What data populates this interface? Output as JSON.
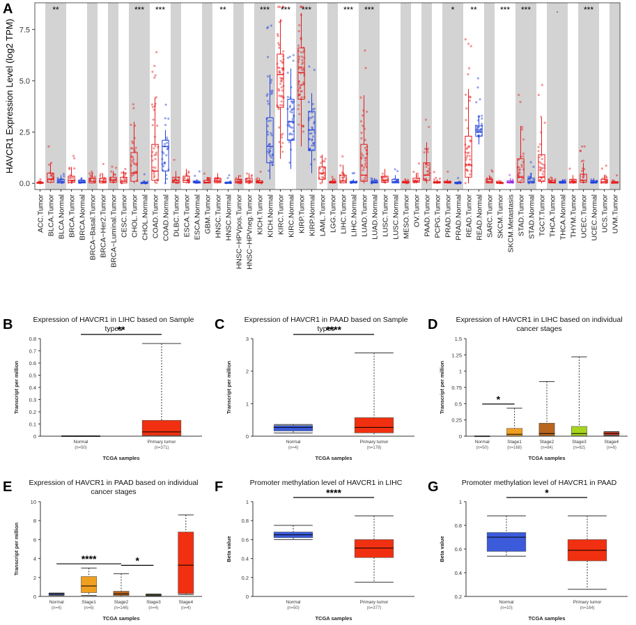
{
  "panel_letters": [
    "A",
    "B",
    "C",
    "D",
    "E",
    "F",
    "G"
  ],
  "chart_data": [
    {
      "id": "A",
      "type": "box",
      "ylabel": "HAVCR1 Expression Level (log2 TPM)",
      "ylim": [
        -0.3,
        8.8
      ],
      "yticks": [
        "0.0",
        "2.5",
        "5.0",
        "7.5"
      ],
      "shaded_columns": "alternating tumor/normal pairs shaded grey",
      "categories": [
        "ACC.Tumor",
        "BLCA.Tumor",
        "BLCA.Normal",
        "BRCA.Tumor",
        "BRCA.Normal",
        "BRCA−Basal.Tumor",
        "BRCA−Her2.Tumor",
        "BRCA−Luminal.Tumor",
        "CESC.Tumor",
        "CHOL.Tumor",
        "CHOL.Normal",
        "COAD.Tumor",
        "COAD.Normal",
        "DLBC.Tumor",
        "ESCA.Tumor",
        "ESCA.Normal",
        "GBM.Tumor",
        "HNSC.Tumor",
        "HNSC.Normal",
        "HNSC−HPVpos.Tumor",
        "HNSC−HPVneg.Tumor",
        "KICH.Tumor",
        "KICH.Normal",
        "KIRC.Tumor",
        "KIRC.Normal",
        "KIRP.Tumor",
        "KIRP.Normal",
        "LAML.Tumor",
        "LGG.Tumor",
        "LIHC.Tumor",
        "LIHC.Normal",
        "LUAD.Tumor",
        "LUAD.Normal",
        "LUSC.Tumor",
        "LUSC.Normal",
        "MESO.Tumor",
        "OV.Tumor",
        "PAAD.Tumor",
        "PCPG.Tumor",
        "PRAD.Tumor",
        "PRAD.Normal",
        "READ.Tumor",
        "READ.Normal",
        "SARC.Tumor",
        "SKCM.Tumor",
        "SKCM.Metastasis",
        "STAD.Tumor",
        "STAD.Normal",
        "TGCT.Tumor",
        "THCA.Tumor",
        "THCA.Normal",
        "THYM.Tumor",
        "UCEC.Tumor",
        "UCEC.Normal",
        "UCS.Tumor",
        "UVM.Tumor"
      ],
      "boxes": [
        {
          "q1": 0.0,
          "med": 0.02,
          "q3": 0.05,
          "wl": 0,
          "wh": 0.1,
          "color": "red"
        },
        {
          "q1": 0.05,
          "med": 0.2,
          "q3": 0.5,
          "wl": 0,
          "wh": 1.0,
          "color": "red"
        },
        {
          "q1": 0.02,
          "med": 0.08,
          "q3": 0.2,
          "wl": 0,
          "wh": 0.4,
          "color": "blue"
        },
        {
          "q1": 0.05,
          "med": 0.15,
          "q3": 0.35,
          "wl": 0,
          "wh": 0.8,
          "color": "red"
        },
        {
          "q1": 0.02,
          "med": 0.06,
          "q3": 0.15,
          "wl": 0,
          "wh": 0.3,
          "color": "blue"
        },
        {
          "q1": 0.02,
          "med": 0.1,
          "q3": 0.25,
          "wl": 0,
          "wh": 0.5,
          "color": "red"
        },
        {
          "q1": 0.02,
          "med": 0.1,
          "q3": 0.25,
          "wl": 0,
          "wh": 0.5,
          "color": "red"
        },
        {
          "q1": 0.05,
          "med": 0.15,
          "q3": 0.3,
          "wl": 0,
          "wh": 0.6,
          "color": "red"
        },
        {
          "q1": 0.02,
          "med": 0.1,
          "q3": 0.3,
          "wl": 0,
          "wh": 0.6,
          "color": "red"
        },
        {
          "q1": 0.1,
          "med": 0.5,
          "q3": 1.5,
          "wl": 0,
          "wh": 3.0,
          "color": "red"
        },
        {
          "q1": 0.0,
          "med": 0.02,
          "q3": 0.05,
          "wl": 0,
          "wh": 0.1,
          "color": "blue"
        },
        {
          "q1": 0.15,
          "med": 0.6,
          "q3": 1.9,
          "wl": 0,
          "wh": 4.2,
          "color": "red"
        },
        {
          "q1": 0.6,
          "med": 1.8,
          "q3": 2.1,
          "wl": 0,
          "wh": 2.6,
          "color": "blue"
        },
        {
          "q1": 0.05,
          "med": 0.15,
          "q3": 0.3,
          "wl": 0,
          "wh": 0.6,
          "color": "red"
        },
        {
          "q1": 0.05,
          "med": 0.15,
          "q3": 0.35,
          "wl": 0,
          "wh": 0.7,
          "color": "red"
        },
        {
          "q1": 0.02,
          "med": 0.05,
          "q3": 0.1,
          "wl": 0,
          "wh": 0.2,
          "color": "blue"
        },
        {
          "q1": 0.02,
          "med": 0.05,
          "q3": 0.15,
          "wl": 0,
          "wh": 0.3,
          "color": "red"
        },
        {
          "q1": 0.03,
          "med": 0.1,
          "q3": 0.25,
          "wl": 0,
          "wh": 0.5,
          "color": "red"
        },
        {
          "q1": 0.0,
          "med": 0.02,
          "q3": 0.05,
          "wl": 0,
          "wh": 0.1,
          "color": "blue"
        },
        {
          "q1": 0.02,
          "med": 0.08,
          "q3": 0.2,
          "wl": 0,
          "wh": 0.4,
          "color": "red"
        },
        {
          "q1": 0.03,
          "med": 0.1,
          "q3": 0.25,
          "wl": 0,
          "wh": 0.5,
          "color": "red"
        },
        {
          "q1": 0.02,
          "med": 0.05,
          "q3": 0.12,
          "wl": 0,
          "wh": 0.25,
          "color": "red"
        },
        {
          "q1": 1.0,
          "med": 1.8,
          "q3": 3.2,
          "wl": 0.2,
          "wh": 5.3,
          "color": "blue"
        },
        {
          "q1": 3.7,
          "med": 5.3,
          "q3": 6.3,
          "wl": 1.2,
          "wh": 8.0,
          "color": "red"
        },
        {
          "q1": 2.1,
          "med": 3.0,
          "q3": 4.1,
          "wl": 0.7,
          "wh": 5.6,
          "color": "blue"
        },
        {
          "q1": 4.1,
          "med": 5.4,
          "q3": 6.6,
          "wl": 1.8,
          "wh": 8.3,
          "color": "red"
        },
        {
          "q1": 1.6,
          "med": 2.6,
          "q3": 3.5,
          "wl": 0.5,
          "wh": 4.4,
          "color": "blue"
        },
        {
          "q1": 0.2,
          "med": 0.5,
          "q3": 0.8,
          "wl": 0,
          "wh": 1.4,
          "color": "red"
        },
        {
          "q1": 0.02,
          "med": 0.05,
          "q3": 0.1,
          "wl": 0,
          "wh": 0.2,
          "color": "red"
        },
        {
          "q1": 0.03,
          "med": 0.12,
          "q3": 0.4,
          "wl": 0,
          "wh": 0.9,
          "color": "red"
        },
        {
          "q1": 0.02,
          "med": 0.05,
          "q3": 0.1,
          "wl": 0,
          "wh": 0.2,
          "color": "blue"
        },
        {
          "q1": 0.1,
          "med": 0.4,
          "q3": 1.9,
          "wl": 0,
          "wh": 4.3,
          "color": "red"
        },
        {
          "q1": 0.02,
          "med": 0.05,
          "q3": 0.12,
          "wl": 0,
          "wh": 0.25,
          "color": "blue"
        },
        {
          "q1": 0.05,
          "med": 0.15,
          "q3": 0.35,
          "wl": 0,
          "wh": 0.7,
          "color": "red"
        },
        {
          "q1": 0.02,
          "med": 0.08,
          "q3": 0.2,
          "wl": 0,
          "wh": 0.4,
          "color": "blue"
        },
        {
          "q1": 0.02,
          "med": 0.05,
          "q3": 0.1,
          "wl": 0,
          "wh": 0.2,
          "color": "red"
        },
        {
          "q1": 0.05,
          "med": 0.12,
          "q3": 0.25,
          "wl": 0,
          "wh": 0.5,
          "color": "red"
        },
        {
          "q1": 0.15,
          "med": 0.4,
          "q3": 1.0,
          "wl": 0,
          "wh": 2.0,
          "color": "red"
        },
        {
          "q1": 0.02,
          "med": 0.05,
          "q3": 0.1,
          "wl": 0,
          "wh": 0.2,
          "color": "red"
        },
        {
          "q1": 0.02,
          "med": 0.05,
          "q3": 0.1,
          "wl": 0,
          "wh": 0.2,
          "color": "red"
        },
        {
          "q1": 0.0,
          "med": 0.02,
          "q3": 0.05,
          "wl": 0,
          "wh": 0.1,
          "color": "blue"
        },
        {
          "q1": 0.3,
          "med": 0.9,
          "q3": 2.3,
          "wl": 0,
          "wh": 4.6,
          "color": "red"
        },
        {
          "q1": 2.3,
          "med": 2.5,
          "q3": 2.8,
          "wl": 1.9,
          "wh": 3.3,
          "color": "blue"
        },
        {
          "q1": 0.02,
          "med": 0.08,
          "q3": 0.2,
          "wl": 0,
          "wh": 0.4,
          "color": "red"
        },
        {
          "q1": 0.0,
          "med": 0.02,
          "q3": 0.05,
          "wl": 0,
          "wh": 0.1,
          "color": "red"
        },
        {
          "q1": 0.02,
          "med": 0.05,
          "q3": 0.12,
          "wl": 0,
          "wh": 0.25,
          "color": "purple"
        },
        {
          "q1": 0.05,
          "med": 0.3,
          "q3": 1.2,
          "wl": 0,
          "wh": 2.8,
          "color": "red"
        },
        {
          "q1": 0.02,
          "med": 0.08,
          "q3": 0.25,
          "wl": 0,
          "wh": 0.5,
          "color": "blue"
        },
        {
          "q1": 0.1,
          "med": 0.3,
          "q3": 1.4,
          "wl": 0,
          "wh": 3.2,
          "color": "red"
        },
        {
          "q1": 0.02,
          "med": 0.06,
          "q3": 0.15,
          "wl": 0,
          "wh": 0.3,
          "color": "red"
        },
        {
          "q1": 0.01,
          "med": 0.04,
          "q3": 0.1,
          "wl": 0,
          "wh": 0.2,
          "color": "blue"
        },
        {
          "q1": 0.02,
          "med": 0.08,
          "q3": 0.2,
          "wl": 0,
          "wh": 0.4,
          "color": "red"
        },
        {
          "q1": 0.05,
          "med": 0.15,
          "q3": 0.45,
          "wl": 0,
          "wh": 1.0,
          "color": "red"
        },
        {
          "q1": 0.02,
          "med": 0.05,
          "q3": 0.12,
          "wl": 0,
          "wh": 0.25,
          "color": "blue"
        },
        {
          "q1": 0.02,
          "med": 0.08,
          "q3": 0.2,
          "wl": 0,
          "wh": 0.4,
          "color": "red"
        },
        {
          "q1": 0.01,
          "med": 0.03,
          "q3": 0.08,
          "wl": 0,
          "wh": 0.15,
          "color": "red"
        }
      ],
      "significance": [
        {
          "category": "BLCA.Tumor",
          "label": "**"
        },
        {
          "category": "CHOL.Tumor",
          "label": "***"
        },
        {
          "category": "COAD.Tumor",
          "label": "***"
        },
        {
          "category": "HNSC.Tumor",
          "label": "**"
        },
        {
          "category": "KICH.Tumor",
          "label": "***"
        },
        {
          "category": "KIRC.Tumor",
          "label": "***"
        },
        {
          "category": "KIRP.Tumor",
          "label": "***"
        },
        {
          "category": "LIHC.Tumor",
          "label": "***"
        },
        {
          "category": "LUAD.Tumor",
          "label": "***"
        },
        {
          "category": "PRAD.Tumor",
          "label": "*"
        },
        {
          "category": "READ.Tumor",
          "label": "**"
        },
        {
          "category": "SKCM.Tumor",
          "label": "***"
        },
        {
          "category": "STAD.Tumor",
          "label": "***"
        },
        {
          "category": "THCA.Tumor",
          "label": "."
        },
        {
          "category": "UCEC.Tumor",
          "label": "***"
        }
      ]
    },
    {
      "id": "B",
      "type": "box",
      "title": "Expression of HAVCR1 in LIHC based on Sample types",
      "ylabel": "Transcript per million",
      "xlabel": "TCGA samples",
      "ylim": [
        0,
        0.8
      ],
      "yticks": [
        "0",
        "0.1",
        "0.2",
        "0.3",
        "0.4",
        "0.5",
        "0.6",
        "0.7",
        "0.8"
      ],
      "groups": [
        {
          "name": "Normal",
          "n": "(n=50)",
          "q1": 0,
          "med": 0,
          "q3": 0.002,
          "wl": 0,
          "wh": 0.003,
          "color": "#3333cc"
        },
        {
          "name": "Primary tumor",
          "n": "(n=371)",
          "q1": 0.005,
          "med": 0.035,
          "q3": 0.13,
          "wl": 0,
          "wh": 0.76,
          "color": "#f03010"
        }
      ],
      "sig": [
        {
          "from": 0,
          "to": 1,
          "label": "**"
        }
      ]
    },
    {
      "id": "C",
      "type": "box",
      "title": "Expression of HAVCR1 in PAAD based on Sample types",
      "ylabel": "Transcript per million",
      "xlabel": "TCGA samples",
      "ylim": [
        0,
        3
      ],
      "yticks": [
        "0",
        "1",
        "2",
        "3"
      ],
      "groups": [
        {
          "name": "Normal",
          "n": "(n=4)",
          "q1": 0.16,
          "med": 0.27,
          "q3": 0.33,
          "wl": 0.1,
          "wh": 0.36,
          "color": "#3b5bdb"
        },
        {
          "name": "Primary tumor",
          "n": "(n=178)",
          "q1": 0.1,
          "med": 0.27,
          "q3": 0.57,
          "wl": 0,
          "wh": 2.56,
          "color": "#f03010"
        }
      ],
      "sig": [
        {
          "from": 0,
          "to": 1,
          "label": "****"
        }
      ]
    },
    {
      "id": "D",
      "type": "box",
      "title": "Expression of HAVCR1 in LIHC based on individual cancer stages",
      "ylabel": "Transcript per million",
      "xlabel": "TCGA samples",
      "ylim": [
        0,
        1.5
      ],
      "yticks": [
        "0",
        "0.25",
        "0.5",
        "0.75",
        "1",
        "1.25",
        "1.5"
      ],
      "groups": [
        {
          "name": "Normal",
          "n": "(n=50)",
          "q1": 0,
          "med": 0,
          "q3": 0.002,
          "wl": 0,
          "wh": 0.003,
          "color": "#3333cc"
        },
        {
          "name": "Stage1",
          "n": "(n=168)",
          "q1": 0.005,
          "med": 0.03,
          "q3": 0.12,
          "wl": 0,
          "wh": 0.43,
          "color": "#f0a020"
        },
        {
          "name": "Stage2",
          "n": "(n=84)",
          "q1": 0.005,
          "med": 0.04,
          "q3": 0.2,
          "wl": 0,
          "wh": 0.84,
          "color": "#b8651e"
        },
        {
          "name": "Stage3",
          "n": "(n=82)",
          "q1": 0.005,
          "med": 0.04,
          "q3": 0.15,
          "wl": 0,
          "wh": 1.22,
          "color": "#a8d420"
        },
        {
          "name": "Stage4",
          "n": "(n=6)",
          "q1": 0.02,
          "med": 0.04,
          "q3": 0.06,
          "wl": 0.01,
          "wh": 0.07,
          "color": "#f03010"
        }
      ],
      "sig": [
        {
          "from": 0,
          "to": 1,
          "label": "*"
        }
      ]
    },
    {
      "id": "E",
      "type": "box",
      "title": "Expression of HAVCR1 in PAAD based on individual cancer stages",
      "ylabel": "Transcript per million",
      "xlabel": "TCGA samples",
      "ylim": [
        0,
        10
      ],
      "yticks": [
        "0",
        "2",
        "4",
        "6",
        "8",
        "10"
      ],
      "groups": [
        {
          "name": "Normal",
          "n": "(n=4)",
          "q1": 0.16,
          "med": 0.27,
          "q3": 0.33,
          "wl": 0.1,
          "wh": 0.36,
          "color": "#3b5bdb"
        },
        {
          "name": "Stage1",
          "n": "(n=6)",
          "q1": 0.4,
          "med": 1.1,
          "q3": 2.1,
          "wl": 0.1,
          "wh": 3.0,
          "color": "#f0a020"
        },
        {
          "name": "Stage2",
          "n": "(n=146)",
          "q1": 0.1,
          "med": 0.27,
          "q3": 0.55,
          "wl": 0,
          "wh": 2.4,
          "color": "#b8651e"
        },
        {
          "name": "Stage3",
          "n": "(n=4)",
          "q1": 0.08,
          "med": 0.15,
          "q3": 0.22,
          "wl": 0.05,
          "wh": 0.26,
          "color": "#a8d420"
        },
        {
          "name": "Stage4",
          "n": "(n=4)",
          "q1": 0.3,
          "med": 3.3,
          "q3": 6.8,
          "wl": 0.2,
          "wh": 8.6,
          "color": "#f03010"
        }
      ],
      "sig": [
        {
          "from": 0,
          "to": 2,
          "label": "****"
        },
        {
          "from": 2,
          "to": 3,
          "label": "*"
        }
      ]
    },
    {
      "id": "F",
      "type": "box",
      "title": "Promoter methylation level of HAVCR1 in LIHC",
      "ylabel": "Beta value",
      "xlabel": "TCGA samples",
      "ylim": [
        0,
        1
      ],
      "yticks": [
        "0",
        "0.2",
        "0.4",
        "0.6",
        "0.8",
        "1"
      ],
      "groups": [
        {
          "name": "Normal",
          "n": "(n=50)",
          "q1": 0.62,
          "med": 0.65,
          "q3": 0.68,
          "wl": 0.6,
          "wh": 0.75,
          "color": "#3b5bdb"
        },
        {
          "name": "Primary tumor",
          "n": "(n=377)",
          "q1": 0.41,
          "med": 0.51,
          "q3": 0.6,
          "wl": 0.15,
          "wh": 0.85,
          "color": "#f03010"
        }
      ],
      "sig": [
        {
          "from": 0,
          "to": 1,
          "label": "****"
        }
      ]
    },
    {
      "id": "G",
      "type": "box",
      "title": "Promoter methylation level of HAVCR1 in PAAD",
      "ylabel": "Beta value",
      "xlabel": "TCGA samples",
      "ylim": [
        0.2,
        1
      ],
      "yticks": [
        "0.2",
        "0.4",
        "0.6",
        "0.8",
        "1"
      ],
      "groups": [
        {
          "name": "Normal",
          "n": "(n=10)",
          "q1": 0.58,
          "med": 0.7,
          "q3": 0.74,
          "wl": 0.54,
          "wh": 0.88,
          "color": "#3b5bdb"
        },
        {
          "name": "Primary tumor",
          "n": "(n=184)",
          "q1": 0.5,
          "med": 0.59,
          "q3": 0.68,
          "wl": 0.26,
          "wh": 0.88,
          "color": "#f03010"
        }
      ],
      "sig": [
        {
          "from": 0,
          "to": 1,
          "label": "*"
        }
      ]
    }
  ]
}
